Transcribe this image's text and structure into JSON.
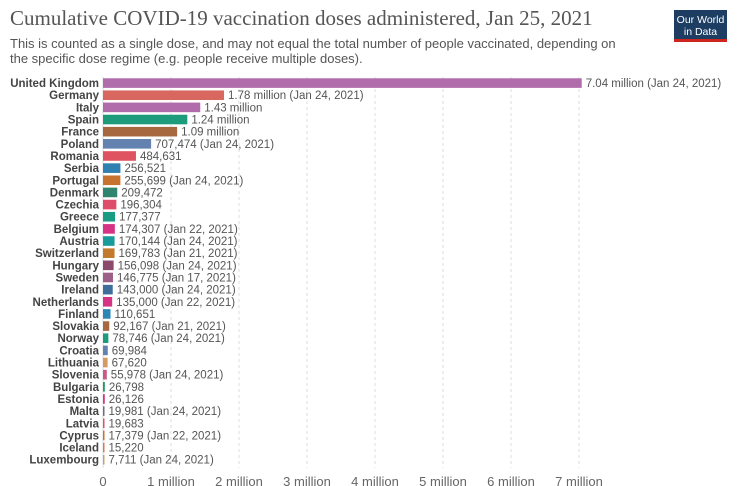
{
  "header": {
    "title": "Cumulative COVID-19 vaccination doses administered, Jan 25, 2021",
    "subtitle": "This is counted as a single dose, and may not equal the total number of people vaccinated, depending on the specific dose regime (e.g. people receive multiple doses)."
  },
  "logo": {
    "line1": "Our World",
    "line2": "in Data"
  },
  "chart_data": {
    "type": "bar",
    "orientation": "horizontal",
    "xlim": [
      0,
      7000000
    ],
    "grid": true,
    "x_ticks": [
      {
        "value": 0,
        "label": "0"
      },
      {
        "value": 1000000,
        "label": "1 million"
      },
      {
        "value": 2000000,
        "label": "2 million"
      },
      {
        "value": 3000000,
        "label": "3 million"
      },
      {
        "value": 4000000,
        "label": "4 million"
      },
      {
        "value": 5000000,
        "label": "5 million"
      },
      {
        "value": 6000000,
        "label": "6 million"
      },
      {
        "value": 7000000,
        "label": "7 million"
      }
    ],
    "bars": [
      {
        "category": "United Kingdom",
        "value": 7040000,
        "label": "7.04 million (Jan 24, 2021)",
        "color": "#b16cab"
      },
      {
        "category": "Germany",
        "value": 1780000,
        "label": "1.78 million (Jan 24, 2021)",
        "color": "#d8675f"
      },
      {
        "category": "Italy",
        "value": 1430000,
        "label": "1.43 million",
        "color": "#b16cab"
      },
      {
        "category": "Spain",
        "value": 1240000,
        "label": "1.24 million",
        "color": "#1d9b7b"
      },
      {
        "category": "France",
        "value": 1090000,
        "label": "1.09 million",
        "color": "#a8683f"
      },
      {
        "category": "Poland",
        "value": 707474,
        "label": "707,474 (Jan 24, 2021)",
        "color": "#6382b0"
      },
      {
        "category": "Romania",
        "value": 484631,
        "label": "484,631",
        "color": "#df5360"
      },
      {
        "category": "Serbia",
        "value": 256521,
        "label": "256,521",
        "color": "#2f7fb1"
      },
      {
        "category": "Portugal",
        "value": 255699,
        "label": "255,699 (Jan 24, 2021)",
        "color": "#c87230"
      },
      {
        "category": "Denmark",
        "value": 209472,
        "label": "209,472",
        "color": "#31846d"
      },
      {
        "category": "Czechia",
        "value": 196304,
        "label": "196,304",
        "color": "#de4d6a"
      },
      {
        "category": "Greece",
        "value": 177377,
        "label": "177,377",
        "color": "#1a9b83"
      },
      {
        "category": "Belgium",
        "value": 174307,
        "label": "174,307 (Jan 22, 2021)",
        "color": "#d63384"
      },
      {
        "category": "Austria",
        "value": 170144,
        "label": "170,144 (Jan 24, 2021)",
        "color": "#1a9b9b"
      },
      {
        "category": "Switzerland",
        "value": 169783,
        "label": "169,783 (Jan 21, 2021)",
        "color": "#c37a2c"
      },
      {
        "category": "Hungary",
        "value": 156098,
        "label": "156,098 (Jan 24, 2021)",
        "color": "#8b4a6b"
      },
      {
        "category": "Sweden",
        "value": 146775,
        "label": "146,775 (Jan 17, 2021)",
        "color": "#9b5f88"
      },
      {
        "category": "Ireland",
        "value": 143000,
        "label": "143,000 (Jan 24, 2021)",
        "color": "#3f6e9a"
      },
      {
        "category": "Netherlands",
        "value": 135000,
        "label": "135,000 (Jan 22, 2021)",
        "color": "#d63384"
      },
      {
        "category": "Finland",
        "value": 110651,
        "label": "110,651",
        "color": "#2e86b4"
      },
      {
        "category": "Slovakia",
        "value": 92167,
        "label": "92,167 (Jan 21, 2021)",
        "color": "#a8683f"
      },
      {
        "category": "Norway",
        "value": 78746,
        "label": "78,746 (Jan 24, 2021)",
        "color": "#1d9b7b"
      },
      {
        "category": "Croatia",
        "value": 69984,
        "label": "69,984",
        "color": "#6382b0"
      },
      {
        "category": "Lithuania",
        "value": 67620,
        "label": "67,620",
        "color": "#d89a5f"
      },
      {
        "category": "Slovenia",
        "value": 55978,
        "label": "55,978 (Jan 24, 2021)",
        "color": "#c85a8a"
      },
      {
        "category": "Bulgaria",
        "value": 26798,
        "label": "26,798",
        "color": "#1d9b5b"
      },
      {
        "category": "Estonia",
        "value": 26126,
        "label": "26,126",
        "color": "#d63384"
      },
      {
        "category": "Malta",
        "value": 19981,
        "label": "19,981 (Jan 24, 2021)",
        "color": "#6b6b8b"
      },
      {
        "category": "Latvia",
        "value": 19683,
        "label": "19,683",
        "color": "#df5360"
      },
      {
        "category": "Cyprus",
        "value": 17379,
        "label": "17,379 (Jan 22, 2021)",
        "color": "#c87230"
      },
      {
        "category": "Iceland",
        "value": 15220,
        "label": "15,220",
        "color": "#d87a50"
      },
      {
        "category": "Luxembourg",
        "value": 7711,
        "label": "7,711 (Jan 24, 2021)",
        "color": "#c8a070"
      }
    ]
  }
}
